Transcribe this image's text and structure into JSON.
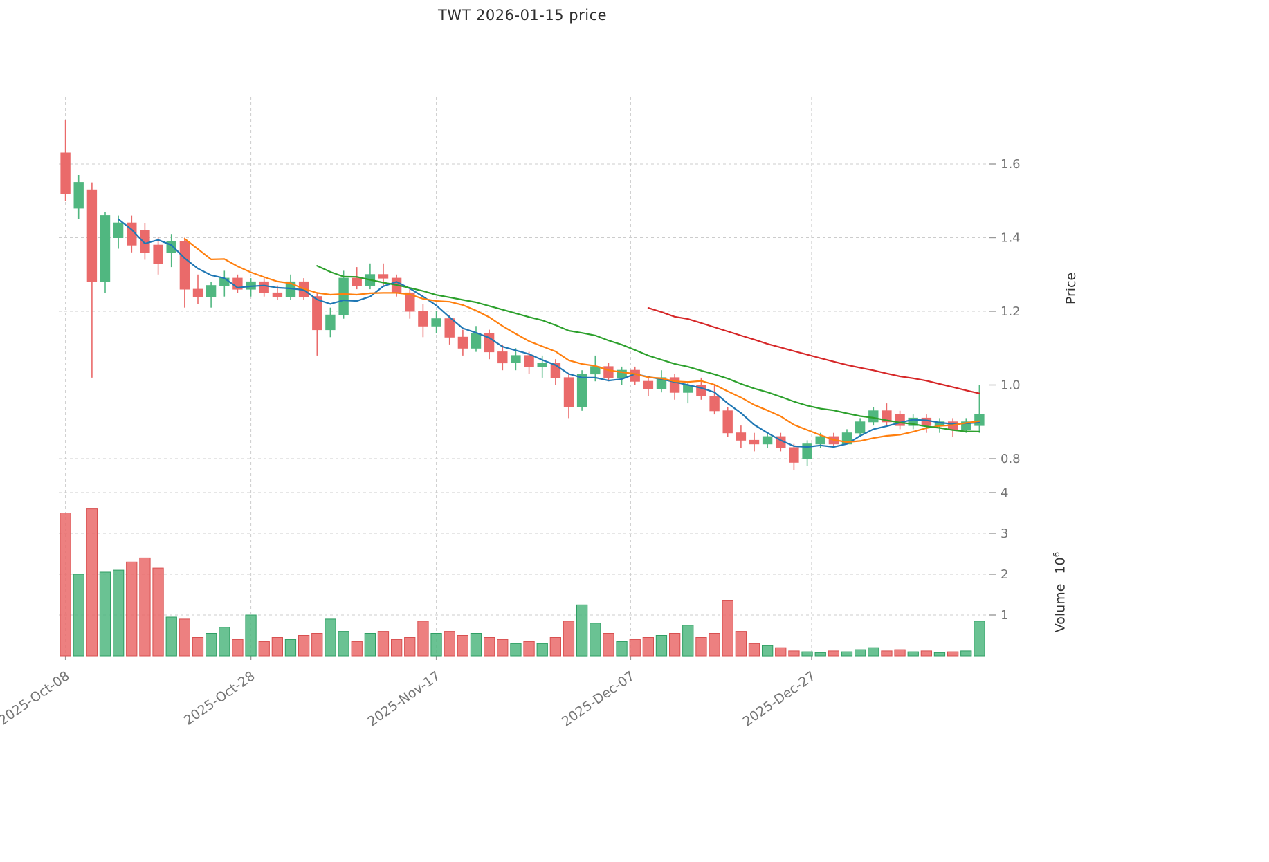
{
  "title": "TWT  2026-01-15  price",
  "axes": {
    "price": {
      "label": "Price",
      "ticks": [
        0.8,
        1.0,
        1.2,
        1.4,
        1.6
      ]
    },
    "volume": {
      "label": "Volume",
      "unit_base": "10",
      "unit_exponent": "6",
      "ticks": [
        1,
        2,
        3,
        4
      ]
    },
    "x": {
      "ticks": [
        {
          "label": "2025-Oct-08",
          "pos": 0
        },
        {
          "label": "2025-Oct-28",
          "pos": 14
        },
        {
          "label": "2025-Nov-17",
          "pos": 28
        },
        {
          "label": "2025-Dec-07",
          "pos": 42.67
        },
        {
          "label": "2025-Dec-27",
          "pos": 56.33
        }
      ]
    }
  },
  "colors": {
    "up": "#50b780",
    "down": "#ea6a6a",
    "up_edge": "#2f9e63",
    "down_edge": "#d85050",
    "grid": "#cccccc",
    "tick": "#999999",
    "tick_text": "#757575",
    "title_text": "#2e2e2e"
  },
  "chart_data": {
    "type": "candlestick",
    "title": "TWT  2026-01-15  price",
    "panels": [
      "price",
      "volume"
    ],
    "grid": true,
    "price_ylim": [
      0.73,
      1.78
    ],
    "volume_ylim": [
      0,
      4.2
    ],
    "volume_unit": 1000000,
    "moving_averages": [
      {
        "window": 5,
        "color": "#1f77b4"
      },
      {
        "window": 10,
        "color": "#ff7f0e"
      },
      {
        "window": 20,
        "color": "#2ca02c"
      },
      {
        "window": 45,
        "color": "#d62728"
      }
    ],
    "columns": [
      "date",
      "open",
      "high",
      "low",
      "close",
      "volume_millions"
    ],
    "candles": [
      [
        "2025-10-08",
        1.63,
        1.72,
        1.5,
        1.52,
        3.5
      ],
      [
        "2025-10-09",
        1.48,
        1.57,
        1.45,
        1.55,
        2.0
      ],
      [
        "2025-10-10",
        1.53,
        1.55,
        1.02,
        1.28,
        3.6
      ],
      [
        "2025-10-13",
        1.28,
        1.47,
        1.25,
        1.46,
        2.05
      ],
      [
        "2025-10-14",
        1.4,
        1.46,
        1.37,
        1.44,
        2.1
      ],
      [
        "2025-10-15",
        1.44,
        1.46,
        1.36,
        1.38,
        2.3
      ],
      [
        "2025-10-16",
        1.42,
        1.44,
        1.34,
        1.36,
        2.4
      ],
      [
        "2025-10-17",
        1.38,
        1.4,
        1.3,
        1.33,
        2.15
      ],
      [
        "2025-10-20",
        1.36,
        1.41,
        1.32,
        1.39,
        0.95
      ],
      [
        "2025-10-21",
        1.39,
        1.4,
        1.21,
        1.26,
        0.9
      ],
      [
        "2025-10-22",
        1.26,
        1.3,
        1.22,
        1.24,
        0.45
      ],
      [
        "2025-10-23",
        1.24,
        1.28,
        1.21,
        1.27,
        0.55
      ],
      [
        "2025-10-24",
        1.27,
        1.31,
        1.24,
        1.29,
        0.7
      ],
      [
        "2025-10-27",
        1.29,
        1.3,
        1.25,
        1.26,
        0.4
      ],
      [
        "2025-10-28",
        1.26,
        1.29,
        1.24,
        1.28,
        1.0
      ],
      [
        "2025-10-29",
        1.28,
        1.29,
        1.24,
        1.25,
        0.35
      ],
      [
        "2025-10-30",
        1.25,
        1.27,
        1.23,
        1.24,
        0.45
      ],
      [
        "2025-10-31",
        1.24,
        1.3,
        1.23,
        1.28,
        0.4
      ],
      [
        "2025-11-03",
        1.28,
        1.29,
        1.23,
        1.24,
        0.5
      ],
      [
        "2025-11-04",
        1.24,
        1.25,
        1.08,
        1.15,
        0.55
      ],
      [
        "2025-11-05",
        1.15,
        1.21,
        1.13,
        1.19,
        0.9
      ],
      [
        "2025-11-06",
        1.19,
        1.31,
        1.18,
        1.29,
        0.6
      ],
      [
        "2025-11-07",
        1.29,
        1.32,
        1.26,
        1.27,
        0.35
      ],
      [
        "2025-11-10",
        1.27,
        1.33,
        1.26,
        1.3,
        0.55
      ],
      [
        "2025-11-11",
        1.3,
        1.33,
        1.27,
        1.29,
        0.6
      ],
      [
        "2025-11-12",
        1.29,
        1.3,
        1.24,
        1.25,
        0.4
      ],
      [
        "2025-11-13",
        1.25,
        1.26,
        1.18,
        1.2,
        0.45
      ],
      [
        "2025-11-14",
        1.2,
        1.22,
        1.13,
        1.16,
        0.85
      ],
      [
        "2025-11-17",
        1.16,
        1.2,
        1.14,
        1.18,
        0.55
      ],
      [
        "2025-11-18",
        1.18,
        1.19,
        1.11,
        1.13,
        0.6
      ],
      [
        "2025-11-19",
        1.13,
        1.15,
        1.08,
        1.1,
        0.5
      ],
      [
        "2025-11-20",
        1.1,
        1.16,
        1.09,
        1.14,
        0.55
      ],
      [
        "2025-11-21",
        1.14,
        1.15,
        1.07,
        1.09,
        0.45
      ],
      [
        "2025-11-24",
        1.09,
        1.11,
        1.04,
        1.06,
        0.4
      ],
      [
        "2025-11-25",
        1.06,
        1.1,
        1.04,
        1.08,
        0.3
      ],
      [
        "2025-11-26",
        1.08,
        1.09,
        1.03,
        1.05,
        0.35
      ],
      [
        "2025-11-27",
        1.05,
        1.08,
        1.02,
        1.06,
        0.3
      ],
      [
        "2025-11-28",
        1.06,
        1.07,
        1.0,
        1.02,
        0.45
      ],
      [
        "2025-12-01",
        1.02,
        1.03,
        0.91,
        0.94,
        0.85
      ],
      [
        "2025-12-02",
        0.94,
        1.04,
        0.93,
        1.03,
        1.25
      ],
      [
        "2025-12-03",
        1.03,
        1.08,
        1.01,
        1.05,
        0.8
      ],
      [
        "2025-12-04",
        1.05,
        1.06,
        1.01,
        1.02,
        0.55
      ],
      [
        "2025-12-05",
        1.02,
        1.05,
        1.0,
        1.04,
        0.35
      ],
      [
        "2025-12-08",
        1.04,
        1.05,
        1.0,
        1.01,
        0.4
      ],
      [
        "2025-12-09",
        1.01,
        1.02,
        0.97,
        0.99,
        0.45
      ],
      [
        "2025-12-10",
        0.99,
        1.04,
        0.98,
        1.02,
        0.5
      ],
      [
        "2025-12-11",
        1.02,
        1.03,
        0.96,
        0.98,
        0.55
      ],
      [
        "2025-12-12",
        0.98,
        1.01,
        0.95,
        1.0,
        0.75
      ],
      [
        "2025-12-15",
        1.0,
        1.02,
        0.96,
        0.97,
        0.45
      ],
      [
        "2025-12-16",
        0.97,
        1.0,
        0.92,
        0.93,
        0.55
      ],
      [
        "2025-12-17",
        0.93,
        0.94,
        0.86,
        0.87,
        1.35
      ],
      [
        "2025-12-18",
        0.87,
        0.89,
        0.83,
        0.85,
        0.6
      ],
      [
        "2025-12-19",
        0.85,
        0.87,
        0.82,
        0.84,
        0.3
      ],
      [
        "2025-12-22",
        0.84,
        0.87,
        0.83,
        0.86,
        0.25
      ],
      [
        "2025-12-23",
        0.86,
        0.87,
        0.82,
        0.83,
        0.2
      ],
      [
        "2025-12-24",
        0.83,
        0.84,
        0.77,
        0.79,
        0.12
      ],
      [
        "2025-12-26",
        0.8,
        0.85,
        0.78,
        0.84,
        0.1
      ],
      [
        "2025-12-29",
        0.84,
        0.87,
        0.83,
        0.86,
        0.08
      ],
      [
        "2025-12-30",
        0.86,
        0.87,
        0.83,
        0.84,
        0.12
      ],
      [
        "2025-12-31",
        0.84,
        0.88,
        0.84,
        0.87,
        0.1
      ],
      [
        "2026-01-02",
        0.87,
        0.91,
        0.86,
        0.9,
        0.15
      ],
      [
        "2026-01-05",
        0.9,
        0.94,
        0.89,
        0.93,
        0.2
      ],
      [
        "2026-01-06",
        0.93,
        0.95,
        0.89,
        0.9,
        0.12
      ],
      [
        "2026-01-07",
        0.92,
        0.93,
        0.88,
        0.89,
        0.15
      ],
      [
        "2026-01-08",
        0.89,
        0.92,
        0.88,
        0.91,
        0.1
      ],
      [
        "2026-01-09",
        0.91,
        0.92,
        0.87,
        0.89,
        0.12
      ],
      [
        "2026-01-12",
        0.89,
        0.91,
        0.87,
        0.9,
        0.08
      ],
      [
        "2026-01-13",
        0.9,
        0.91,
        0.86,
        0.88,
        0.1
      ],
      [
        "2026-01-14",
        0.88,
        0.91,
        0.87,
        0.9,
        0.12
      ],
      [
        "2026-01-15",
        0.89,
        1.0,
        0.87,
        0.92,
        0.85
      ]
    ]
  }
}
